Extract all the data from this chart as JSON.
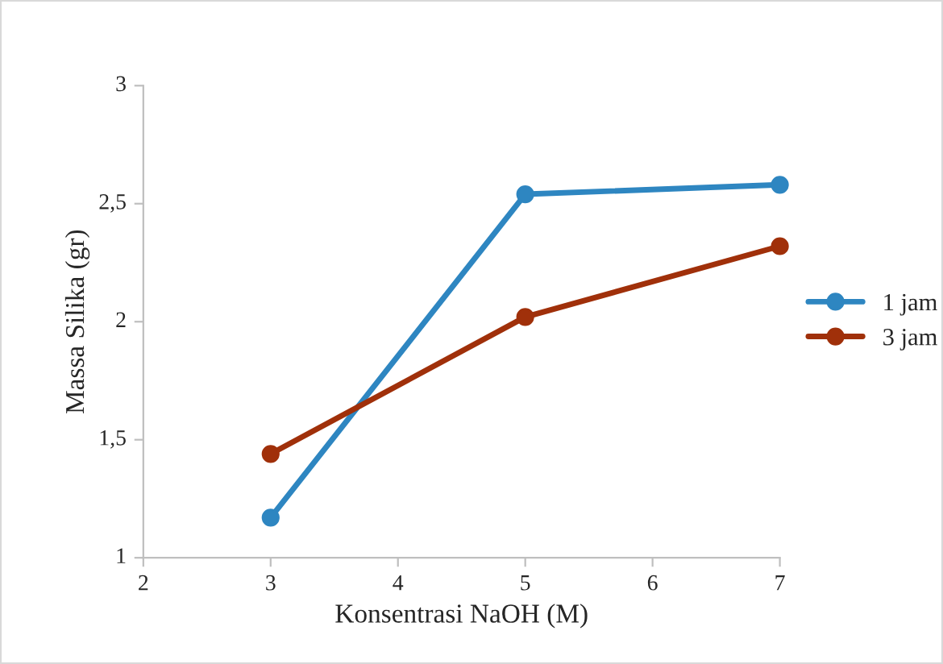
{
  "chart_data": {
    "type": "line",
    "xlabel": "Konsentrasi NaOH (M)",
    "ylabel": "Massa Silika (gr)",
    "x": [
      3,
      5,
      7
    ],
    "series": [
      {
        "name": "1 jam",
        "color": "#2e86c1",
        "values": [
          1.17,
          2.54,
          2.58
        ]
      },
      {
        "name": "3 jam",
        "color": "#a0300a",
        "values": [
          1.44,
          2.02,
          2.32
        ]
      }
    ],
    "xlim": [
      2,
      7
    ],
    "xticks": [
      2,
      3,
      4,
      5,
      6,
      7
    ],
    "ylim": [
      1,
      3
    ],
    "yticks": [
      1,
      {
        "value": 1.5,
        "label": "1,5"
      },
      2,
      {
        "value": 2.5,
        "label": "2,5"
      },
      3
    ],
    "grid": false,
    "legend": "right",
    "marker": "circle",
    "line_style": "solid"
  }
}
